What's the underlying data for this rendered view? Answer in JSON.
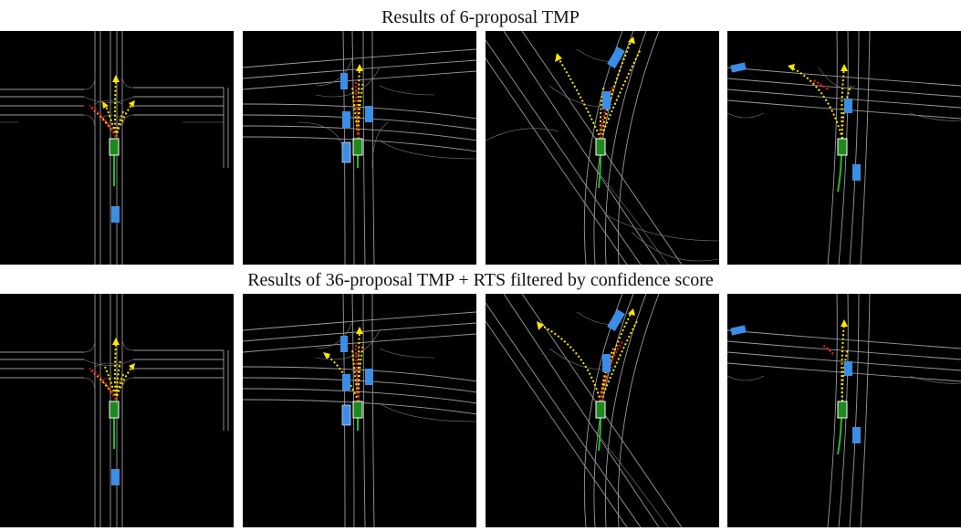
{
  "figure": {
    "top_caption": "Results of 6-proposal TMP",
    "bottom_caption": "Results of 36-proposal TMP + RTS filtered by confidence score"
  },
  "colors": {
    "panel_background": "#000000",
    "road_lines": "#9a9a9a",
    "ego_vehicle": "#1e8a1e",
    "other_vehicles": "#3a8ee6",
    "predicted_trajectories": "#ffe600",
    "highlighted_trajectory": "#e01818",
    "history": "#20c020"
  },
  "legend_icons": [
    "ego-vehicle-icon",
    "agent-vehicle-icon",
    "trajectory-arrow-icon"
  ]
}
